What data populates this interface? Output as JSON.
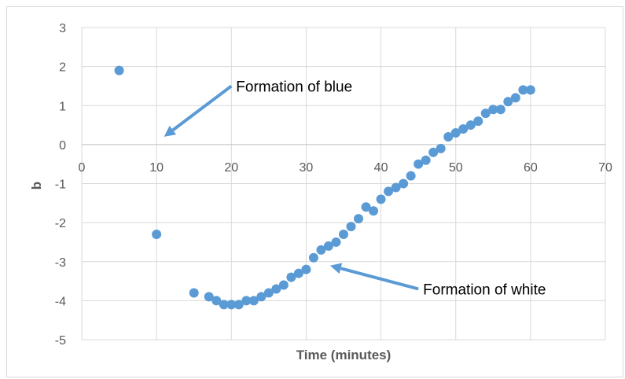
{
  "chart_data": {
    "type": "scatter",
    "title": "",
    "xlabel": "Time (minutes)",
    "ylabel": "b",
    "xlim": [
      0,
      70
    ],
    "ylim": [
      -5,
      3
    ],
    "xticks": [
      0,
      10,
      20,
      30,
      40,
      50,
      60,
      70
    ],
    "yticks": [
      -5,
      -4,
      -3,
      -2,
      -1,
      0,
      1,
      2,
      3
    ],
    "grid": true,
    "legend": "none",
    "marker_color": "#5b9bd5",
    "series": [
      {
        "points": [
          [
            5,
            1.9
          ],
          [
            10,
            -2.3
          ],
          [
            15,
            -3.8
          ],
          [
            17,
            -3.9
          ],
          [
            18,
            -4.0
          ],
          [
            19,
            -4.1
          ],
          [
            20,
            -4.1
          ],
          [
            21,
            -4.1
          ],
          [
            22,
            -4.0
          ],
          [
            23,
            -4.0
          ],
          [
            24,
            -3.9
          ],
          [
            25,
            -3.8
          ],
          [
            26,
            -3.7
          ],
          [
            27,
            -3.6
          ],
          [
            28,
            -3.4
          ],
          [
            29,
            -3.3
          ],
          [
            30,
            -3.2
          ],
          [
            31,
            -2.9
          ],
          [
            32,
            -2.7
          ],
          [
            33,
            -2.6
          ],
          [
            34,
            -2.5
          ],
          [
            35,
            -2.3
          ],
          [
            36,
            -2.1
          ],
          [
            37,
            -1.9
          ],
          [
            38,
            -1.6
          ],
          [
            39,
            -1.7
          ],
          [
            40,
            -1.4
          ],
          [
            41,
            -1.2
          ],
          [
            42,
            -1.1
          ],
          [
            43,
            -1.0
          ],
          [
            44,
            -0.8
          ],
          [
            45,
            -0.5
          ],
          [
            46,
            -0.4
          ],
          [
            47,
            -0.2
          ],
          [
            48,
            -0.1
          ],
          [
            49,
            0.2
          ],
          [
            50,
            0.3
          ],
          [
            51,
            0.4
          ],
          [
            52,
            0.5
          ],
          [
            53,
            0.6
          ],
          [
            54,
            0.8
          ],
          [
            55,
            0.9
          ],
          [
            56,
            0.9
          ],
          [
            57,
            1.1
          ],
          [
            58,
            1.2
          ],
          [
            59,
            1.4
          ],
          [
            60,
            1.4
          ]
        ]
      }
    ],
    "annotations": [
      {
        "text": "Formation of blue",
        "arrow_from": [
          20,
          1.5
        ],
        "arrow_to": [
          11,
          0.2
        ]
      },
      {
        "text": "Formation of white",
        "arrow_from": [
          45,
          -3.7
        ],
        "arrow_to": [
          33.2,
          -3.1
        ]
      }
    ]
  }
}
